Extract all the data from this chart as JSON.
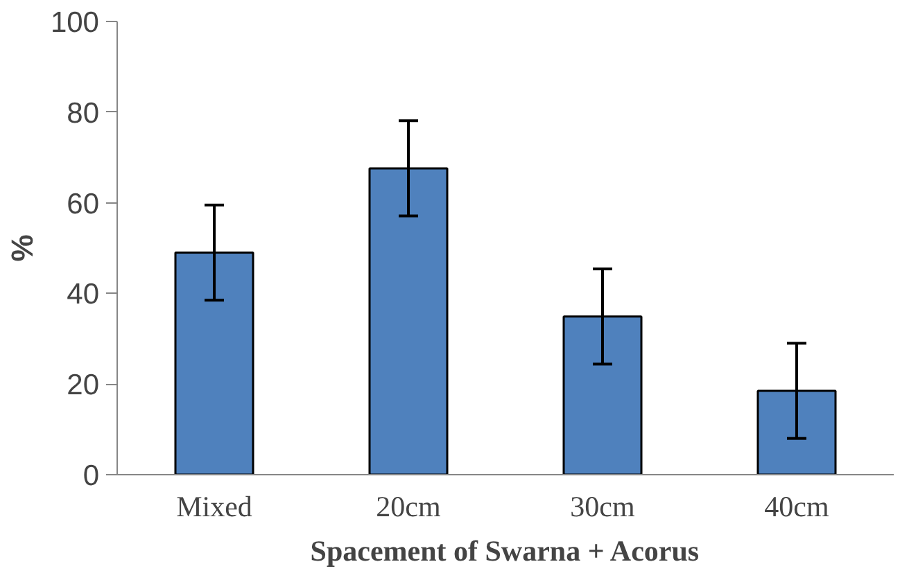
{
  "chart_data": {
    "type": "bar",
    "xlabel": "Spacement of Swarna + Acorus",
    "ylabel": "%",
    "categories": [
      "Mixed",
      "20cm",
      "30cm",
      "40cm"
    ],
    "values": [
      49,
      67.6,
      34.9,
      18.5
    ],
    "errors": [
      10.5,
      10.5,
      10.5,
      10.5
    ],
    "color": "#4f81bd",
    "ylim": [
      0,
      100
    ],
    "yticks": [
      0,
      20,
      40,
      60,
      80,
      100
    ],
    "grid": false
  }
}
